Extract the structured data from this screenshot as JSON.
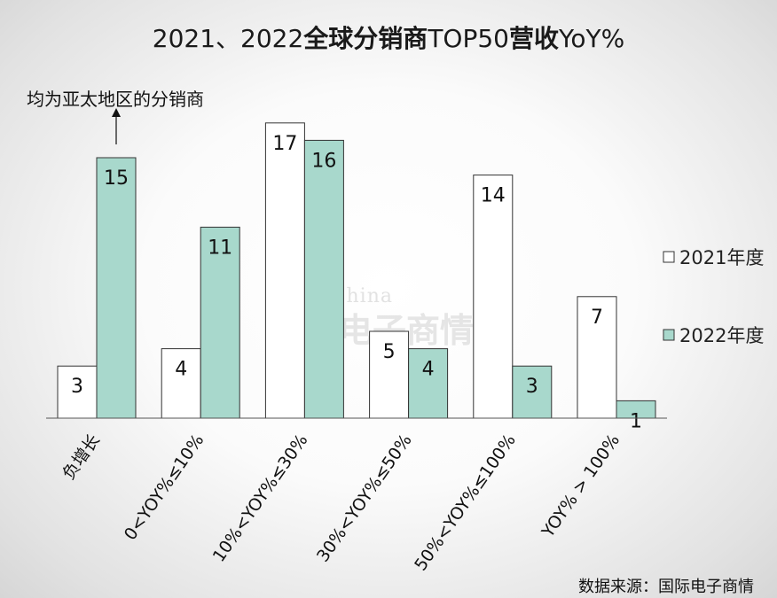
{
  "header": {
    "title_part1": "2021、2022",
    "title_part2": "全球分销商",
    "title_part3": "TOP50",
    "title_part4": "营收",
    "title_part5": "YoY%"
  },
  "annotation": "均为亚太地区的分销商",
  "source": "数据来源：国际电子商情",
  "watermark": {
    "en": "ESM China",
    "cn": "国际电子商情"
  },
  "colors": {
    "series_2021": "#ffffff",
    "series_2022": "#a8d8cc",
    "stroke": "#333333"
  },
  "chart_data": {
    "type": "bar",
    "title": "2021、2022全球分销商TOP50营收YoY%",
    "categories": [
      "负增长",
      "0<YOY%≤10%",
      "10%<YOY%≤30%",
      "30%<YOY%≤50%",
      "50%<YOY%≤100%",
      "YOY% > 100%"
    ],
    "series": [
      {
        "name": "2021年度",
        "values": [
          3,
          4,
          17,
          5,
          14,
          7
        ]
      },
      {
        "name": "2022年度",
        "values": [
          15,
          11,
          16,
          4,
          3,
          1
        ]
      }
    ],
    "ylim": [
      0,
      17
    ],
    "grid": false,
    "legend": "right"
  }
}
